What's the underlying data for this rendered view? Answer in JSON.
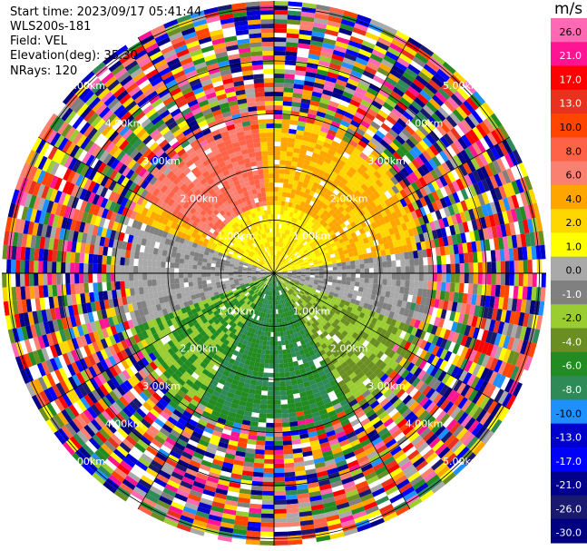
{
  "info": {
    "start_time": "Start time: 2023/09/17 05:41:44",
    "instrument": "WLS200s-181",
    "field": "Field: VEL",
    "elevation": "Elevation(deg): 35.30",
    "nrays": "NRays: 120"
  },
  "colorbar": {
    "unit": "m/s",
    "ticks": [
      "26.0",
      "21.0",
      "17.0",
      "13.0",
      "10.0",
      "8.0",
      "6.0",
      "4.0",
      "2.0",
      "1.0",
      "0.0",
      "-1.0",
      "-2.0",
      "-4.0",
      "-6.0",
      "-8.0",
      "-10.0",
      "-13.0",
      "-17.0",
      "-21.0",
      "-26.0",
      "-30.0"
    ],
    "colors": [
      "#ff69b4",
      "#ff1493",
      "#ff0000",
      "#e8321e",
      "#ff4500",
      "#ff6347",
      "#fa8072",
      "#ffa500",
      "#ffd700",
      "#ffff00",
      "#a9a9a9",
      "#808080",
      "#9acd32",
      "#6b8e23",
      "#228b22",
      "#2e8b57",
      "#1e90ff",
      "#0000cd",
      "#0000ff",
      "#00008b",
      "#191970",
      "#000080"
    ]
  },
  "ring_labels": [
    "1.00km",
    "2.00km",
    "3.00km",
    "4.00km",
    "5.00km"
  ],
  "chart_data": {
    "type": "heatmap",
    "title": "",
    "field": "VEL",
    "unit": "m/s",
    "elevation_deg": 35.3,
    "n_rays": 120,
    "range_rings_km": [
      1,
      2,
      3,
      4,
      5
    ],
    "color_limits": [
      -30.0,
      26.0
    ],
    "description_of_pattern": "near-range receding velocities (warm colors, ~+2 to +8 m/s) to the north, approaching velocities (greens, ~-2 to -8 m/s) to the south, gray ~0 m/s along the east-west axis, noisy multi-color speckle beyond ~3 km"
  }
}
